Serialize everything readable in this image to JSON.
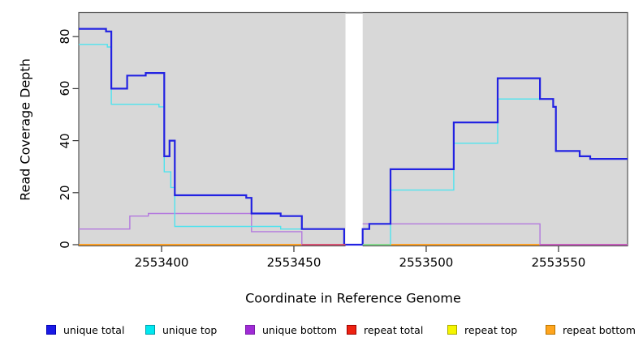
{
  "figure": {
    "x_axis_title": "Coordinate in Reference Genome",
    "y_axis_title": "Read Coverage Depth"
  },
  "chart_data": {
    "type": "line",
    "step": true,
    "title": "",
    "xlabel": "Coordinate in Reference Genome",
    "ylabel": "Read Coverage Depth",
    "xlim": [
      2553368.7,
      2553576.1
    ],
    "ylim": [
      0,
      89
    ],
    "grid": false,
    "plot_background": "#D8D8D8",
    "x_ticks": [
      {
        "value": 2553400,
        "label": "2553400"
      },
      {
        "value": 2553450,
        "label": "2553450"
      },
      {
        "value": 2553500,
        "label": "2553500"
      },
      {
        "value": 2553550,
        "label": "2553550"
      }
    ],
    "y_ticks": [
      {
        "value": 0,
        "label": "0"
      },
      {
        "value": 20,
        "label": "20"
      },
      {
        "value": 40,
        "label": "40"
      },
      {
        "value": 60,
        "label": "60"
      },
      {
        "value": 80,
        "label": "80"
      }
    ],
    "coverage_gap": {
      "x_start": 2553469.5,
      "x_end": 2553476,
      "note": "white no-data column"
    },
    "series": [
      {
        "name": "repeat top",
        "color": "#F0F000",
        "width": 1.3,
        "segments": [
          [
            [
              2553368.7,
              0
            ],
            [
              2553469.5,
              0
            ]
          ],
          [
            [
              2553476,
              0
            ],
            [
              2553576.1,
              0
            ]
          ]
        ]
      },
      {
        "name": "repeat total",
        "color": "#DD2C1E",
        "width": 1.3,
        "segments": [
          [
            [
              2553368.7,
              0
            ],
            [
              2553469.5,
              0
            ]
          ],
          [
            [
              2553476,
              0
            ],
            [
              2553576.1,
              0
            ]
          ]
        ]
      },
      {
        "name": "repeat bottom",
        "color": "#FF9E1B",
        "width": 1.8,
        "segments": [
          [
            [
              2553368.7,
              0
            ],
            [
              2553469.5,
              0
            ]
          ],
          [
            [
              2553476,
              0
            ],
            [
              2553576.1,
              0
            ]
          ]
        ]
      },
      {
        "name": "unique bottom",
        "color": "#B379DE",
        "width": 1.4,
        "segments": [
          [
            [
              2553368.7,
              6
            ],
            [
              2553388,
              11
            ],
            [
              2553395,
              12
            ],
            [
              2553434,
              5
            ],
            [
              2553453,
              0
            ],
            [
              2553469.5,
              0
            ]
          ],
          [
            [
              2553476,
              8
            ],
            [
              2553543,
              0
            ],
            [
              2553576.1,
              0
            ]
          ]
        ]
      },
      {
        "name": "unique top",
        "color": "#4FE3EE",
        "width": 1.4,
        "segments": [
          [
            [
              2553368.7,
              77
            ],
            [
              2553379.5,
              76
            ],
            [
              2553381,
              54
            ],
            [
              2553399,
              53
            ],
            [
              2553401,
              28
            ],
            [
              2553403.5,
              22
            ],
            [
              2553405,
              7
            ],
            [
              2553445,
              6
            ],
            [
              2553469,
              6
            ]
          ],
          [
            [
              2553476,
              0
            ],
            [
              2553486.5,
              21
            ],
            [
              2553510.4,
              39
            ],
            [
              2553527,
              56
            ],
            [
              2553548,
              53
            ],
            [
              2553549,
              36
            ],
            [
              2553558,
              34
            ],
            [
              2553562,
              33
            ],
            [
              2553576.1,
              33
            ]
          ]
        ]
      },
      {
        "name": "unique total",
        "color": "#2222E2",
        "width": 2.2,
        "segments": [
          [
            [
              2553368.7,
              83
            ],
            [
              2553379,
              82
            ],
            [
              2553381,
              60
            ],
            [
              2553387,
              65
            ],
            [
              2553394,
              66
            ],
            [
              2553401,
              34
            ],
            [
              2553403,
              40
            ],
            [
              2553405,
              19
            ],
            [
              2553432,
              18
            ],
            [
              2553434,
              12
            ],
            [
              2553445,
              11
            ],
            [
              2553453,
              6
            ],
            [
              2553469,
              0
            ],
            [
              2553476,
              6
            ],
            [
              2553478.5,
              8
            ],
            [
              2553486.5,
              29
            ],
            [
              2553510.4,
              47
            ],
            [
              2553527,
              64
            ],
            [
              2553543,
              56
            ],
            [
              2553548,
              53
            ],
            [
              2553549,
              36
            ],
            [
              2553558,
              34
            ],
            [
              2553562,
              33
            ],
            [
              2553576.1,
              33
            ]
          ]
        ]
      }
    ],
    "baseline_segments": [
      {
        "x_start": 2553453,
        "x_end": 2553469.5,
        "color": "#D64A70",
        "note": "unique-bottom/repeat-total overlap at depth 0"
      },
      {
        "x_start": 2553476,
        "x_end": 2553486.5,
        "color": "#7FD98C",
        "note": "unique-top/repeat-top overlap at depth 0"
      },
      {
        "x_start": 2553543,
        "x_end": 2553576.1,
        "color": "#C158C1",
        "note": "unique-bottom/repeat overlap at depth 0"
      }
    ]
  },
  "legend": {
    "items": [
      {
        "label": "unique total",
        "fill": "#1A1AE6",
        "border": "#0000B0"
      },
      {
        "label": "unique top",
        "fill": "#00E8F0",
        "border": "#009AA8"
      },
      {
        "label": "unique bottom",
        "fill": "#A02BD6",
        "border": "#7A1FA8"
      },
      {
        "label": "repeat total",
        "fill": "#EE2211",
        "border": "#990000"
      },
      {
        "label": "repeat top",
        "fill": "#F5F500",
        "border": "#A8A800"
      },
      {
        "label": "repeat bottom",
        "fill": "#FFA51E",
        "border": "#B87400"
      }
    ]
  }
}
